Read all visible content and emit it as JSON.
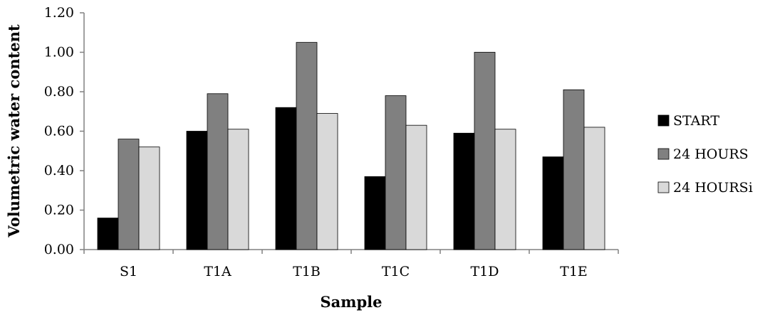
{
  "chart_data": {
    "type": "bar",
    "title": "",
    "xlabel": "Sample",
    "ylabel": "Volumetric water content",
    "categories": [
      "S1",
      "T1A",
      "T1B",
      "T1C",
      "T1D",
      "T1E"
    ],
    "series": [
      {
        "name": "START",
        "color": "#000000",
        "values": [
          0.16,
          0.6,
          0.72,
          0.37,
          0.59,
          0.47
        ]
      },
      {
        "name": "24 HOURS",
        "color": "#808080",
        "values": [
          0.56,
          0.79,
          1.05,
          0.78,
          1.0,
          0.81
        ]
      },
      {
        "name": "24 HOURSi",
        "color": "#d9d9d9",
        "values": [
          0.52,
          0.61,
          0.69,
          0.63,
          0.61,
          0.62
        ]
      }
    ],
    "ylim": [
      0,
      1.2
    ],
    "yticks": [
      "0.00",
      "0.20",
      "0.40",
      "0.60",
      "0.80",
      "1.00",
      "1.20"
    ],
    "grid": false,
    "legend_position": "right"
  }
}
